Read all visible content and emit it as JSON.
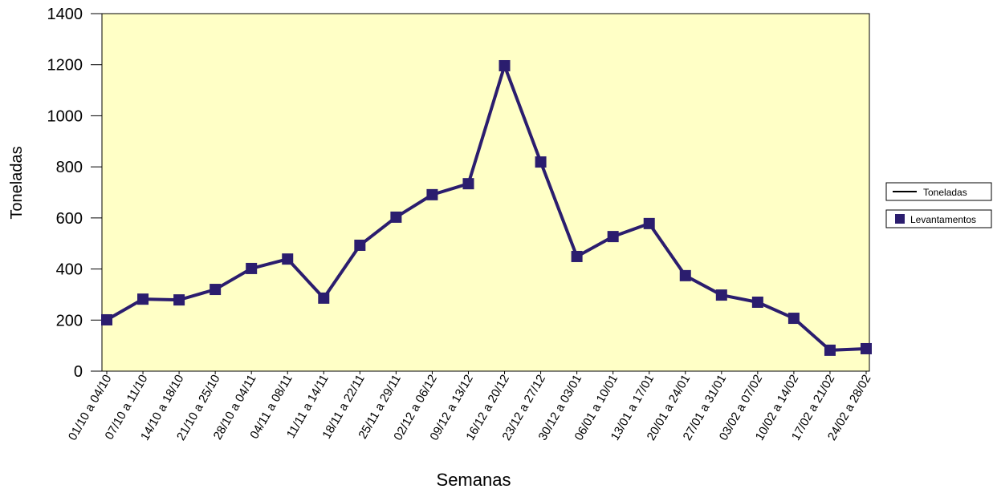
{
  "chart_data": {
    "type": "line",
    "xlabel": "Semanas",
    "ylabel": "Toneladas",
    "categories": [
      "01/10 a 04/10",
      "07/10 a 11/10",
      "14/10 a 18/10",
      "21/10 a 25/10",
      "28/10 a 04/11",
      "04/11 a 08/11",
      "11/11 a 14/11",
      "18/11 a 22/11",
      "25/11 a 29/11",
      "02/12 a 06/12",
      "09/12 a 13/12",
      "16/12 a 20/12",
      "23/12 a 27/12",
      "30/12 a 03/01",
      "06/01 a 10/01",
      "13/01 a 17/01",
      "20/01 a 24/01",
      "27/01 a 31/01",
      "03/02 a 07/02",
      "10/02 a 14/02",
      "17/02 a 21/02",
      "24/02 a 28/02"
    ],
    "category_label_colors": [
      "#000000",
      "#d02020",
      "#d02020",
      "#d02020",
      "#d02020",
      "#d02020",
      "#d02020",
      "#d02020",
      "#d02020",
      "#d02020",
      "#d02020",
      "#d02020",
      "#d02020",
      "#d02020",
      "#d02020",
      "#d02020",
      "#d02020",
      "#d02020",
      "#000000",
      "#000000",
      "#000000",
      "#000000"
    ],
    "series": [
      {
        "name": "Toneladas",
        "marker_name": "Levantamentos",
        "color": "#2b1d6e",
        "values": [
          201,
          282,
          279,
          320,
          402,
          439,
          286,
          493,
          603,
          691,
          734,
          1196,
          819,
          449,
          527,
          578,
          374,
          298,
          270,
          207,
          82,
          88
        ]
      }
    ],
    "ylim": [
      0,
      1400
    ],
    "yticks": [
      0,
      200,
      400,
      600,
      800,
      1000,
      1200,
      1400
    ],
    "plot_background": "#ffffc6",
    "legend": "right"
  }
}
